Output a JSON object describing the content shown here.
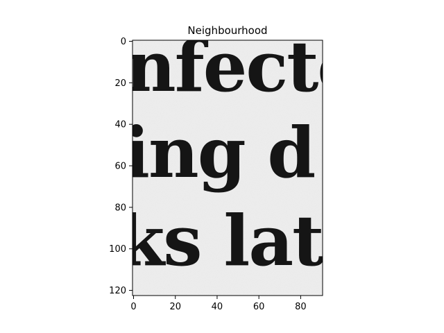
{
  "figure": {
    "title": "Neighbourhood",
    "image": {
      "description_type": "grayscale scanned text crop",
      "text_lines": [
        "nfecte",
        "ing d",
        "ks lat"
      ],
      "background_color": "#eeeeee",
      "ink_color": "#151515"
    },
    "x_axis": {
      "ticks": [
        0,
        20,
        40,
        60,
        80
      ],
      "range": [
        -0.5,
        90.5
      ]
    },
    "y_axis": {
      "ticks": [
        0,
        20,
        40,
        60,
        80,
        100,
        120
      ],
      "range": [
        -0.5,
        122.5
      ],
      "inverted": true
    }
  }
}
